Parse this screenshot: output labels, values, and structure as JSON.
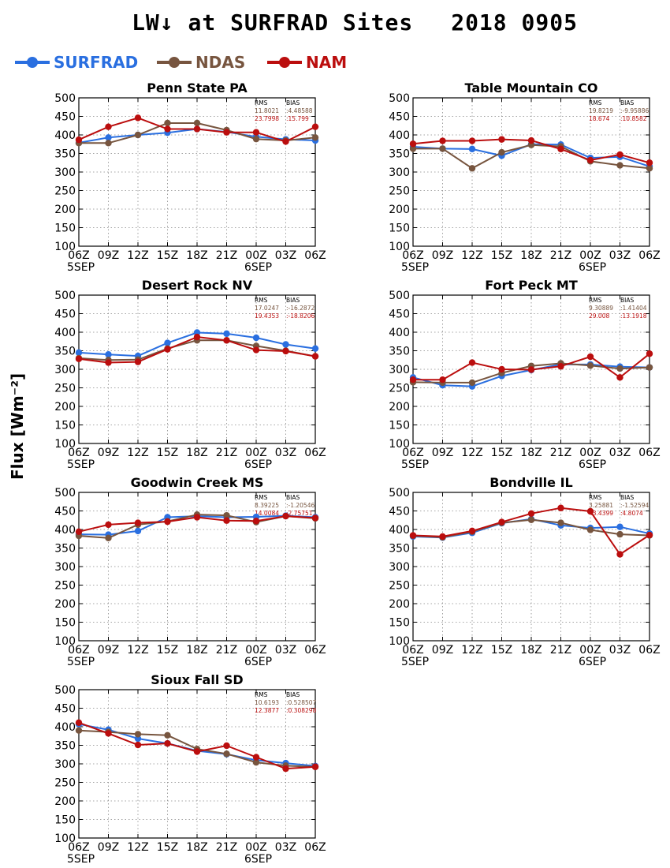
{
  "page": {
    "title": "LW↓ at SURFRAD Sites",
    "date": "2018 0905",
    "ylabel": "Flux [Wm⁻²]"
  },
  "legend": [
    {
      "name": "SURFRAD",
      "color": "#2a6fe0"
    },
    {
      "name": "NDAS",
      "color": "#77553f"
    },
    {
      "name": "NAM",
      "color": "#bb0e0e"
    }
  ],
  "chart_data": [
    {
      "type": "line",
      "title": "Penn State PA",
      "categories": [
        "06Z",
        "09Z",
        "12Z",
        "15Z",
        "18Z",
        "21Z",
        "00Z",
        "03Z",
        "06Z"
      ],
      "date_labels": [
        {
          "index": 0,
          "text": "5SEP"
        },
        {
          "index": 6,
          "text": "6SEP"
        }
      ],
      "ylim": [
        100,
        500
      ],
      "yticks": [
        100,
        150,
        200,
        250,
        300,
        350,
        400,
        450,
        500
      ],
      "grid": true,
      "stats": {
        "header": [
          "RMS",
          "BIAS"
        ],
        "rows": [
          [
            "11.8021",
            "4.48588"
          ],
          [
            "23.7998",
            "15.799"
          ]
        ]
      },
      "series": [
        {
          "name": "SURFRAD",
          "color": "#2a6fe0",
          "values": [
            379,
            393,
            400,
            406,
            416,
            408,
            395,
            388,
            385
          ]
        },
        {
          "name": "NDAS",
          "color": "#77553f",
          "values": [
            378,
            378,
            400,
            432,
            432,
            413,
            389,
            385,
            393
          ]
        },
        {
          "name": "NAM",
          "color": "#bb0e0e",
          "values": [
            387,
            422,
            446,
            416,
            416,
            407,
            407,
            382,
            422
          ]
        }
      ]
    },
    {
      "type": "line",
      "title": "Table Mountain CO",
      "categories": [
        "06Z",
        "09Z",
        "12Z",
        "15Z",
        "18Z",
        "21Z",
        "00Z",
        "03Z",
        "06Z"
      ],
      "date_labels": [
        {
          "index": 0,
          "text": "5SEP"
        },
        {
          "index": 6,
          "text": "6SEP"
        }
      ],
      "ylim": [
        100,
        500
      ],
      "yticks": [
        100,
        150,
        200,
        250,
        300,
        350,
        400,
        450,
        500
      ],
      "grid": true,
      "stats": {
        "header": [
          "RMS",
          "BIAS"
        ],
        "rows": [
          [
            "19.8219",
            "-9.95886"
          ],
          [
            "18.674",
            "10.8582"
          ]
        ]
      },
      "series": [
        {
          "name": "SURFRAD",
          "color": "#2a6fe0",
          "values": [
            368,
            363,
            362,
            344,
            375,
            374,
            338,
            341,
            315
          ]
        },
        {
          "name": "NDAS",
          "color": "#77553f",
          "values": [
            363,
            363,
            310,
            353,
            373,
            369,
            329,
            318,
            310
          ]
        },
        {
          "name": "NAM",
          "color": "#bb0e0e",
          "values": [
            376,
            384,
            384,
            388,
            385,
            362,
            332,
            347,
            325
          ]
        }
      ]
    },
    {
      "type": "line",
      "title": "Desert Rock NV",
      "categories": [
        "06Z",
        "09Z",
        "12Z",
        "15Z",
        "18Z",
        "21Z",
        "00Z",
        "03Z",
        "06Z"
      ],
      "date_labels": [
        {
          "index": 0,
          "text": "5SEP"
        },
        {
          "index": 6,
          "text": "6SEP"
        }
      ],
      "ylim": [
        100,
        500
      ],
      "yticks": [
        100,
        150,
        200,
        250,
        300,
        350,
        400,
        450,
        500
      ],
      "grid": true,
      "stats": {
        "header": [
          "RMS",
          "BIAS"
        ],
        "rows": [
          [
            "17.0247",
            "-16.2872"
          ],
          [
            "19.4353",
            "-18.8206"
          ]
        ]
      },
      "series": [
        {
          "name": "SURFRAD",
          "color": "#2a6fe0",
          "values": [
            345,
            340,
            336,
            371,
            399,
            396,
            385,
            367,
            356
          ]
        },
        {
          "name": "NDAS",
          "color": "#77553f",
          "values": [
            330,
            325,
            326,
            356,
            378,
            378,
            363,
            350,
            335
          ]
        },
        {
          "name": "NAM",
          "color": "#bb0e0e",
          "values": [
            328,
            318,
            320,
            354,
            387,
            378,
            352,
            349,
            335
          ]
        }
      ]
    },
    {
      "type": "line",
      "title": "Fort Peck MT",
      "categories": [
        "06Z",
        "09Z",
        "12Z",
        "15Z",
        "18Z",
        "21Z",
        "00Z",
        "03Z",
        "06Z"
      ],
      "date_labels": [
        {
          "index": 0,
          "text": "5SEP"
        },
        {
          "index": 6,
          "text": "6SEP"
        }
      ],
      "ylim": [
        100,
        500
      ],
      "yticks": [
        100,
        150,
        200,
        250,
        300,
        350,
        400,
        450,
        500
      ],
      "grid": true,
      "stats": {
        "header": [
          "RMS",
          "BIAS"
        ],
        "rows": [
          [
            "9.30889",
            "1.41404"
          ],
          [
            "29.008",
            "13.1918"
          ]
        ]
      },
      "series": [
        {
          "name": "SURFRAD",
          "color": "#2a6fe0",
          "values": [
            278,
            257,
            254,
            282,
            298,
            313,
            313,
            307,
            305
          ]
        },
        {
          "name": "NDAS",
          "color": "#77553f",
          "values": [
            265,
            264,
            264,
            290,
            309,
            316,
            310,
            302,
            305
          ]
        },
        {
          "name": "NAM",
          "color": "#bb0e0e",
          "values": [
            272,
            272,
            318,
            300,
            299,
            308,
            334,
            278,
            342
          ]
        }
      ]
    },
    {
      "type": "line",
      "title": "Goodwin Creek MS",
      "categories": [
        "06Z",
        "09Z",
        "12Z",
        "15Z",
        "18Z",
        "21Z",
        "00Z",
        "03Z",
        "06Z"
      ],
      "date_labels": [
        {
          "index": 0,
          "text": "5SEP"
        },
        {
          "index": 6,
          "text": "6SEP"
        }
      ],
      "ylim": [
        100,
        500
      ],
      "yticks": [
        100,
        150,
        200,
        250,
        300,
        350,
        400,
        450,
        500
      ],
      "grid": true,
      "stats": {
        "header": [
          "RMS",
          "BIAS"
        ],
        "rows": [
          [
            "8.39225",
            "-1.20546"
          ],
          [
            "14.0084",
            "2.75751"
          ]
        ]
      },
      "series": [
        {
          "name": "SURFRAD",
          "color": "#2a6fe0",
          "values": [
            387,
            386,
            396,
            433,
            436,
            433,
            434,
            437,
            433
          ]
        },
        {
          "name": "NDAS",
          "color": "#77553f",
          "values": [
            383,
            377,
            413,
            422,
            440,
            438,
            420,
            436,
            430
          ]
        },
        {
          "name": "NAM",
          "color": "#bb0e0e",
          "values": [
            394,
            413,
            418,
            421,
            433,
            424,
            423,
            436,
            431
          ]
        }
      ]
    },
    {
      "type": "line",
      "title": "Bondville IL",
      "categories": [
        "06Z",
        "09Z",
        "12Z",
        "15Z",
        "18Z",
        "21Z",
        "00Z",
        "03Z",
        "06Z"
      ],
      "date_labels": [
        {
          "index": 0,
          "text": "5SEP"
        },
        {
          "index": 6,
          "text": "6SEP"
        }
      ],
      "ylim": [
        100,
        500
      ],
      "yticks": [
        100,
        150,
        200,
        250,
        300,
        350,
        400,
        450,
        500
      ],
      "grid": true,
      "stats": {
        "header": [
          "RMS",
          "BIAS"
        ],
        "rows": [
          [
            "3.25881",
            "-1.52594"
          ],
          [
            "43.4399",
            "4.8074"
          ]
        ]
      },
      "series": [
        {
          "name": "SURFRAD",
          "color": "#2a6fe0",
          "values": [
            381,
            378,
            391,
            417,
            428,
            411,
            404,
            407,
            389
          ]
        },
        {
          "name": "NDAS",
          "color": "#77553f",
          "values": [
            383,
            379,
            394,
            418,
            426,
            418,
            399,
            387,
            384
          ]
        },
        {
          "name": "NAM",
          "color": "#bb0e0e",
          "values": [
            384,
            381,
            396,
            420,
            443,
            458,
            449,
            333,
            385
          ]
        }
      ]
    },
    {
      "type": "line",
      "title": "Sioux Fall SD",
      "categories": [
        "06Z",
        "09Z",
        "12Z",
        "15Z",
        "18Z",
        "21Z",
        "00Z",
        "03Z",
        "06Z"
      ],
      "date_labels": [
        {
          "index": 0,
          "text": "5SEP"
        },
        {
          "index": 6,
          "text": "6SEP"
        }
      ],
      "ylim": [
        100,
        500
      ],
      "yticks": [
        100,
        150,
        200,
        250,
        300,
        350,
        400,
        450,
        500
      ],
      "grid": true,
      "stats": {
        "header": [
          "RMS",
          "BIAS"
        ],
        "rows": [
          [
            "10.6193",
            "0.528507"
          ],
          [
            "12.3877",
            "0.308298"
          ]
        ]
      },
      "series": [
        {
          "name": "SURFRAD",
          "color": "#2a6fe0",
          "values": [
            407,
            392,
            368,
            355,
            335,
            326,
            310,
            302,
            294
          ]
        },
        {
          "name": "NDAS",
          "color": "#77553f",
          "values": [
            390,
            386,
            380,
            377,
            340,
            327,
            304,
            295,
            292
          ]
        },
        {
          "name": "NAM",
          "color": "#bb0e0e",
          "values": [
            411,
            382,
            351,
            355,
            333,
            349,
            318,
            287,
            292
          ]
        }
      ]
    }
  ]
}
